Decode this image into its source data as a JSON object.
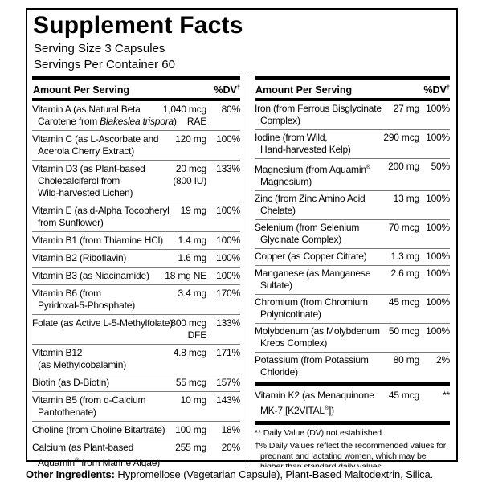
{
  "panel": {
    "title": "Supplement Facts",
    "serving_size": "Serving Size 3 Capsules",
    "servings_per_container": "Servings Per Container 60"
  },
  "columns": {
    "header": {
      "amount": "Amount Per Serving",
      "dv": "%DV",
      "dagger": "†"
    },
    "left": {
      "rows": [
        {
          "name": [
            {
              "t": "Vitamin A (as Natural Beta\nCarotene from "
            },
            {
              "t": "Blakeslea trispora",
              "i": true
            },
            {
              "t": ")"
            }
          ],
          "amount": "1,040 mcg\nRAE",
          "dv": "80%"
        },
        {
          "name": [
            {
              "t": "Vitamin C (as L-Ascorbate and\nAcerola Cherry Extract)"
            }
          ],
          "amount": "120 mg",
          "dv": "100%"
        },
        {
          "name": [
            {
              "t": "Vitamin D3 (as Plant-based\nCholecalciferol from\nWild-harvested Lichen)"
            }
          ],
          "amount": "20 mcg\n(800 IU)",
          "dv": "133%"
        },
        {
          "name": [
            {
              "t": "Vitamin E (as d-Alpha Tocopheryl\nfrom Sunflower)"
            }
          ],
          "amount": "19 mg",
          "dv": "100%"
        },
        {
          "name": [
            {
              "t": "Vitamin B1 (from Thiamine HCl)"
            }
          ],
          "amount": "1.4 mg",
          "dv": "100%"
        },
        {
          "name": [
            {
              "t": "Vitamin B2 (Riboflavin)"
            }
          ],
          "amount": "1.6 mg",
          "dv": "100%"
        },
        {
          "name": [
            {
              "t": "Vitamin B3 (as Niacinamide)"
            }
          ],
          "amount": "18 mg NE",
          "dv": "100%"
        },
        {
          "name": [
            {
              "t": "Vitamin B6 (from\nPyridoxal-5-Phosphate)"
            }
          ],
          "amount": "3.4 mg",
          "dv": "170%"
        },
        {
          "name": [
            {
              "t": "Folate (as Active L-5-Methylfolate)"
            }
          ],
          "amount": "800 mcg\nDFE",
          "dv": "133%",
          "lines": 2
        },
        {
          "name": [
            {
              "t": "Vitamin B12\n(as Methylcobalamin)"
            }
          ],
          "amount": "4.8 mcg",
          "dv": "171%"
        },
        {
          "name": [
            {
              "t": "Biotin (as D-Biotin)"
            }
          ],
          "amount": "55 mcg",
          "dv": "157%"
        },
        {
          "name": [
            {
              "t": "Vitamin B5 (from d-Calcium\nPantothenate)"
            }
          ],
          "amount": "10 mg",
          "dv": "143%"
        },
        {
          "name": [
            {
              "t": "Choline (from Choline Bitartrate)"
            }
          ],
          "amount": "100 mg",
          "dv": "18%"
        },
        {
          "name": [
            {
              "t": "Calcium (as Plant-based\nAquamin"
            },
            {
              "t": "®",
              "s": true
            },
            {
              "t": " from Marine Algae)"
            }
          ],
          "amount": "255 mg",
          "dv": "20%"
        }
      ]
    },
    "right": {
      "rows": [
        {
          "name": [
            {
              "t": "Iron (from Ferrous Bisglycinate\nComplex)"
            }
          ],
          "amount": "27 mg",
          "dv": "100%"
        },
        {
          "name": [
            {
              "t": "Iodine (from Wild,\nHand-harvested Kelp)"
            }
          ],
          "amount": "290 mcg",
          "dv": "100%"
        },
        {
          "name": [
            {
              "t": "Magnesium (from Aquamin"
            },
            {
              "t": "®",
              "s": true
            },
            {
              "t": "\nMagnesium)"
            }
          ],
          "amount": "200 mg",
          "dv": "50%"
        },
        {
          "name": [
            {
              "t": "Zinc (from Zinc Amino Acid\nChelate)"
            }
          ],
          "amount": "13 mg",
          "dv": "100%"
        },
        {
          "name": [
            {
              "t": "Selenium (from Selenium\nGlycinate Complex)"
            }
          ],
          "amount": "70 mcg",
          "dv": "100%"
        },
        {
          "name": [
            {
              "t": "Copper (as Copper Citrate)"
            }
          ],
          "amount": "1.3 mg",
          "dv": "100%"
        },
        {
          "name": [
            {
              "t": "Manganese (as Manganese\nSulfate)"
            }
          ],
          "amount": "2.6 mg",
          "dv": "100%"
        },
        {
          "name": [
            {
              "t": "Chromium (from Chromium\nPolynicotinate)"
            }
          ],
          "amount": "45 mcg",
          "dv": "100%"
        },
        {
          "name": [
            {
              "t": "Molybdenum (as Molybdenum\nKrebs Complex)"
            }
          ],
          "amount": "50 mcg",
          "dv": "100%"
        },
        {
          "name": [
            {
              "t": "Potassium (from Potassium\nChloride)"
            }
          ],
          "amount": "80 mg",
          "dv": "2%"
        }
      ],
      "k2_row": {
        "name": [
          {
            "t": "Vitamin K2 (as Menaquinone\nMK-7 [K2VITAL"
          },
          {
            "t": "®",
            "s": true
          },
          {
            "t": "])"
          }
        ],
        "amount": "45 mcg",
        "dv": "**"
      },
      "footnotes": [
        "** Daily Value (DV) not established.",
        "†% Daily Values reflect the recommended values for pregnant and lactating women, which may be higher than standard daily values."
      ]
    }
  },
  "other_ingredients": {
    "label": "Other Ingredients:",
    "text": "Hypromellose (Vegetarian Capsule), Plant-Based Maltodextrin, Silica."
  }
}
